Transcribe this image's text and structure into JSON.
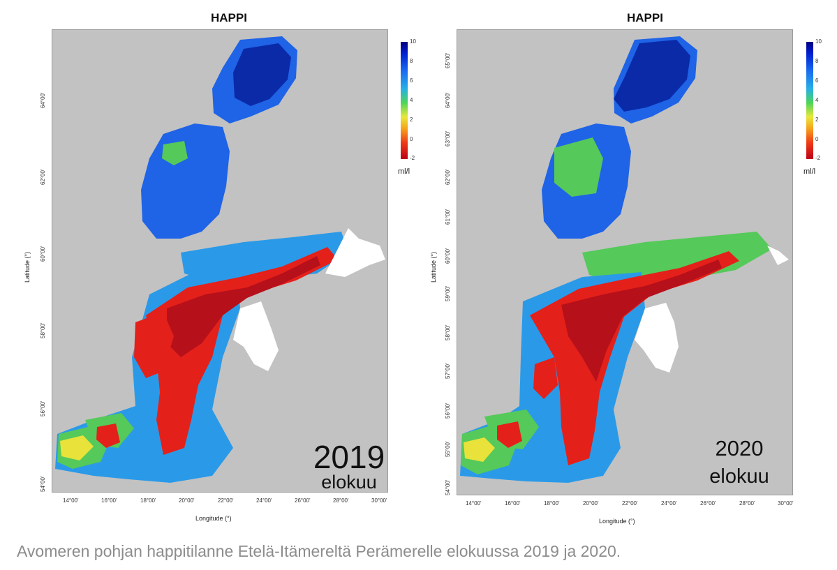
{
  "panels": [
    {
      "title": "HAPPI",
      "year": "2019",
      "month": "elokuu",
      "ylabel": "Latitude (°)",
      "xlabel": "Longitude (°)",
      "yticks": [
        "64°00'",
        "62°00'",
        "60°00'",
        "58°00'",
        "56°00'",
        "54°00'"
      ],
      "xticks": [
        "14°00'",
        "16°00'",
        "18°00'",
        "20°00'",
        "22°00'",
        "24°00'",
        "26°00'",
        "28°00'",
        "30°00'"
      ],
      "colorbar": {
        "unit": "ml/l",
        "ticks": [
          "10",
          "8",
          "6",
          "4",
          "2",
          "0",
          "-2"
        ]
      }
    },
    {
      "title": "HAPPI",
      "year": "2020",
      "month": "elokuu",
      "ylabel": "Latitude (°)",
      "xlabel": "Longitude (°)",
      "yticks": [
        "65°00'",
        "64°00'",
        "63°00'",
        "62°00'",
        "61°00'",
        "60°00'",
        "59°00'",
        "58°00'",
        "57°00'",
        "56°00'",
        "55°00'",
        "54°00'"
      ],
      "xticks": [
        "14°00'",
        "16°00'",
        "18°00'",
        "20°00'",
        "22°00'",
        "24°00'",
        "26°00'",
        "28°00'",
        "30°00'"
      ],
      "colorbar": {
        "unit": "ml/l",
        "ticks": [
          "10",
          "8",
          "6",
          "4",
          "2",
          "0",
          "-2"
        ]
      }
    }
  ],
  "caption": "Avomeren pohjan happitilanne Etelä-Itämereltä Perämerelle elokuussa 2019 ja 2020.",
  "colors": {
    "land": "#c2c2c2",
    "deep_blue": "#0a2aa8",
    "blue": "#1f63e6",
    "light_blue": "#2a9ae8",
    "green": "#55c95a",
    "yellow": "#e8e23a",
    "red": "#e4201a",
    "dark_red": "#b6101a",
    "mask": "#ffffff"
  }
}
